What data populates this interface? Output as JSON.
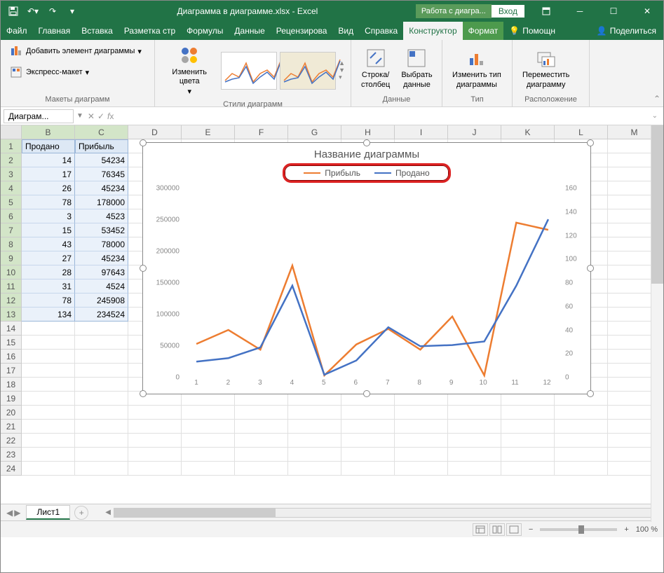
{
  "titlebar": {
    "title": "Диаграмма в диаграмме.xlsx - Excel",
    "contextual": "Работа с диагра...",
    "signin": "Вход"
  },
  "tabs": {
    "file": "Файл",
    "home": "Главная",
    "insert": "Вставка",
    "layout": "Разметка стр",
    "formulas": "Формулы",
    "data": "Данные",
    "review": "Рецензирова",
    "view": "Вид",
    "help": "Справка",
    "design": "Конструктор",
    "format": "Формат",
    "tellme": "Помощн",
    "share": "Поделиться"
  },
  "ribbon": {
    "addElement": "Добавить элемент диаграммы",
    "quickLayout": "Экспресс-макет",
    "layoutsGroup": "Макеты диаграмм",
    "changeColors": "Изменить цвета",
    "stylesGroup": "Стили диаграмм",
    "switchRowCol": "Строка/\nстолбец",
    "selectData": "Выбрать\nданные",
    "dataGroup": "Данные",
    "changeType": "Изменить тип\nдиаграммы",
    "typeGroup": "Тип",
    "moveChart": "Переместить\nдиаграмму",
    "locationGroup": "Расположение"
  },
  "namebox": "Диаграм...",
  "columns": [
    "B",
    "C",
    "D",
    "E",
    "F",
    "G",
    "H",
    "I",
    "J",
    "K",
    "L",
    "M"
  ],
  "rowCount": 24,
  "table": {
    "header1": "Продано",
    "header2": "Прибыль",
    "rows": [
      [
        "14",
        "54234"
      ],
      [
        "17",
        "76345"
      ],
      [
        "26",
        "45234"
      ],
      [
        "78",
        "178000"
      ],
      [
        "3",
        "4523"
      ],
      [
        "15",
        "53452"
      ],
      [
        "43",
        "78000"
      ],
      [
        "27",
        "45234"
      ],
      [
        "28",
        "97643"
      ],
      [
        "31",
        "4524"
      ],
      [
        "78",
        "245908"
      ],
      [
        "134",
        "234524"
      ]
    ]
  },
  "chart": {
    "title": "Название диаграммы",
    "legend1": "Прибыль",
    "legend2": "Продано",
    "color1": "#ed7d31",
    "color2": "#4472c4",
    "highlight": "#d22",
    "yticks": [
      0,
      50000,
      100000,
      150000,
      200000,
      250000,
      300000
    ],
    "y2ticks": [
      0,
      20,
      40,
      60,
      80,
      100,
      120,
      140,
      160
    ],
    "xticks": [
      1,
      2,
      3,
      4,
      5,
      6,
      7,
      8,
      9,
      10,
      11,
      12
    ],
    "series1": [
      54234,
      76345,
      45234,
      178000,
      4523,
      53452,
      78000,
      45234,
      97643,
      4524,
      245908,
      234524
    ],
    "series2": [
      14,
      17,
      26,
      78,
      3,
      15,
      43,
      27,
      28,
      31,
      78,
      134
    ],
    "y1max": 300000,
    "y2max": 160
  },
  "sheet": "Лист1",
  "zoom": "100 %"
}
